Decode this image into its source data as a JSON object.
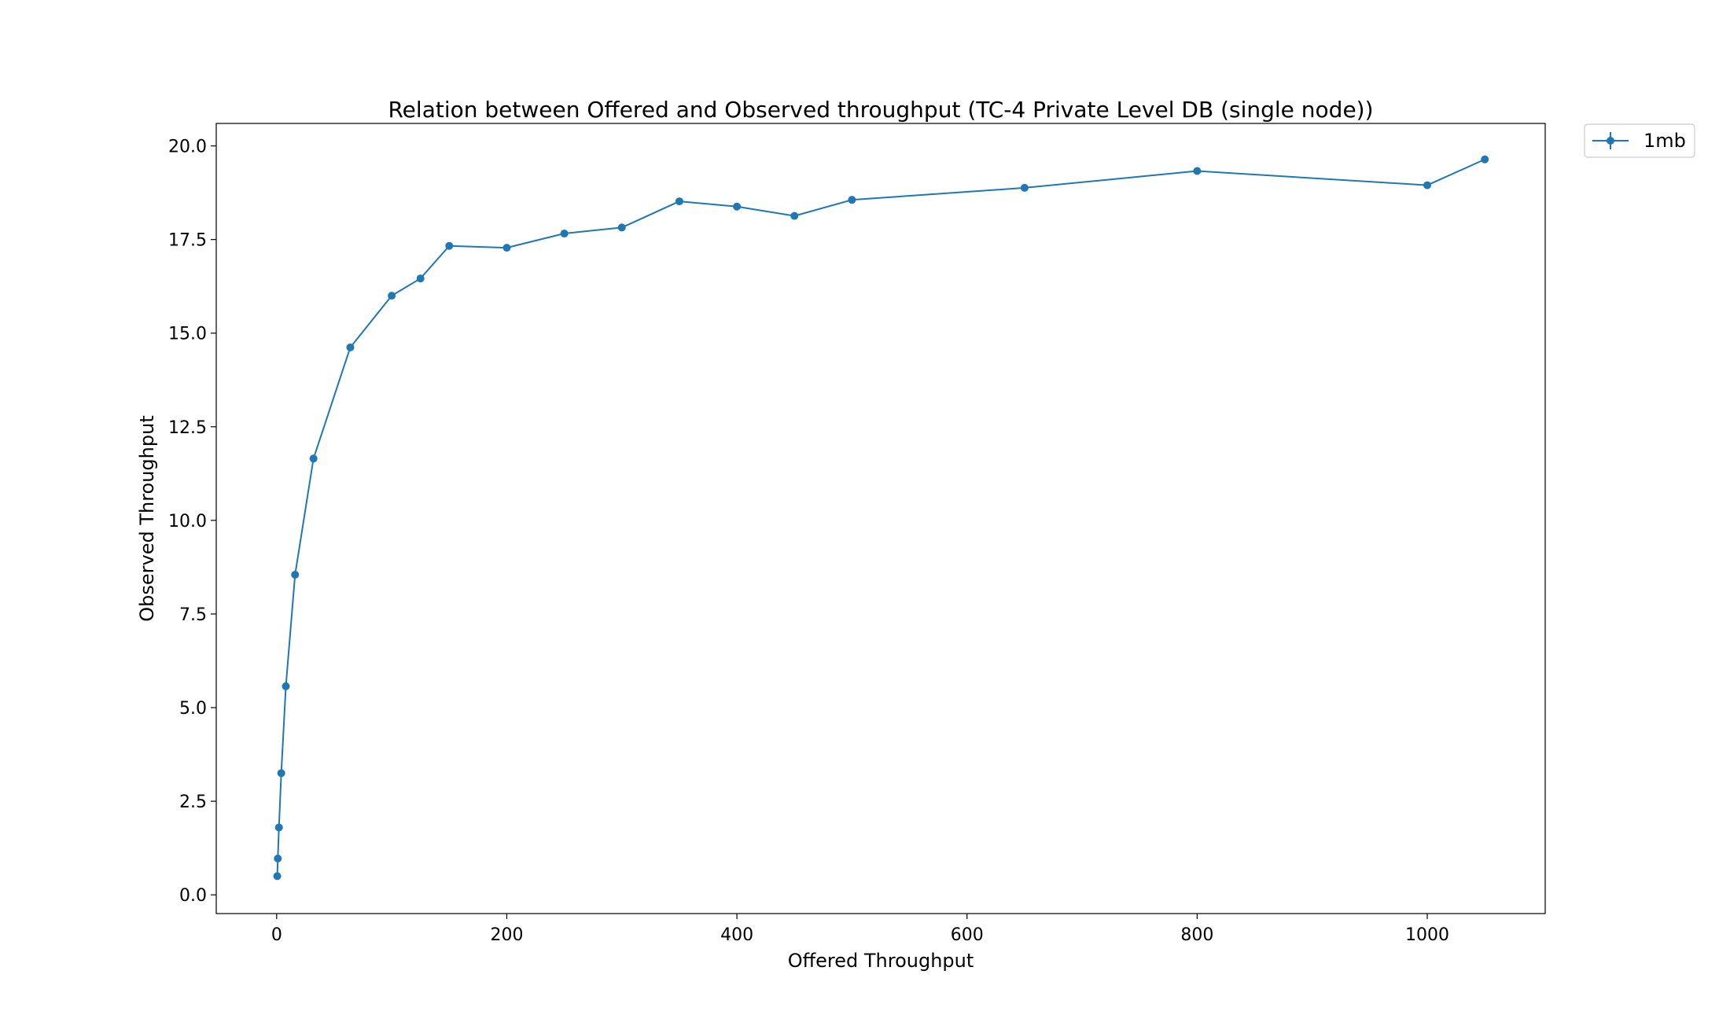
{
  "chart_data": {
    "type": "line",
    "title": "Relation between Offered and Observed throughput (TC-4  Private Level DB (single node))",
    "xlabel": "Offered Throughput",
    "ylabel": "Observed Throughput",
    "xlim": [
      -52.5,
      1102.5
    ],
    "ylim": [
      -0.5,
      20.6
    ],
    "xticks": [
      0,
      200,
      400,
      600,
      800,
      1000
    ],
    "xtick_labels": [
      "0",
      "200",
      "400",
      "600",
      "800",
      "1000"
    ],
    "yticks": [
      0,
      2.5,
      5,
      7.5,
      10,
      12.5,
      15,
      17.5,
      20
    ],
    "ytick_labels": [
      "0.0",
      "2.5",
      "5.0",
      "7.5",
      "10.0",
      "12.5",
      "15.0",
      "17.5",
      "20.0"
    ],
    "grid": false,
    "legend_position": "outside-top-right",
    "series": [
      {
        "name": "1mb",
        "color": "#1f77b4",
        "marker": "circle",
        "x": [
          0.5,
          1,
          2,
          4,
          8,
          16,
          32,
          64,
          100,
          125,
          150,
          200,
          250,
          300,
          350,
          400,
          450,
          500,
          650,
          800,
          1000,
          1050
        ],
        "y": [
          0.5,
          0.97,
          1.8,
          3.25,
          5.57,
          8.55,
          11.65,
          14.62,
          16.0,
          16.46,
          17.33,
          17.28,
          17.66,
          17.82,
          18.52,
          18.38,
          18.13,
          18.56,
          18.88,
          19.33,
          18.95,
          19.64
        ]
      }
    ]
  }
}
